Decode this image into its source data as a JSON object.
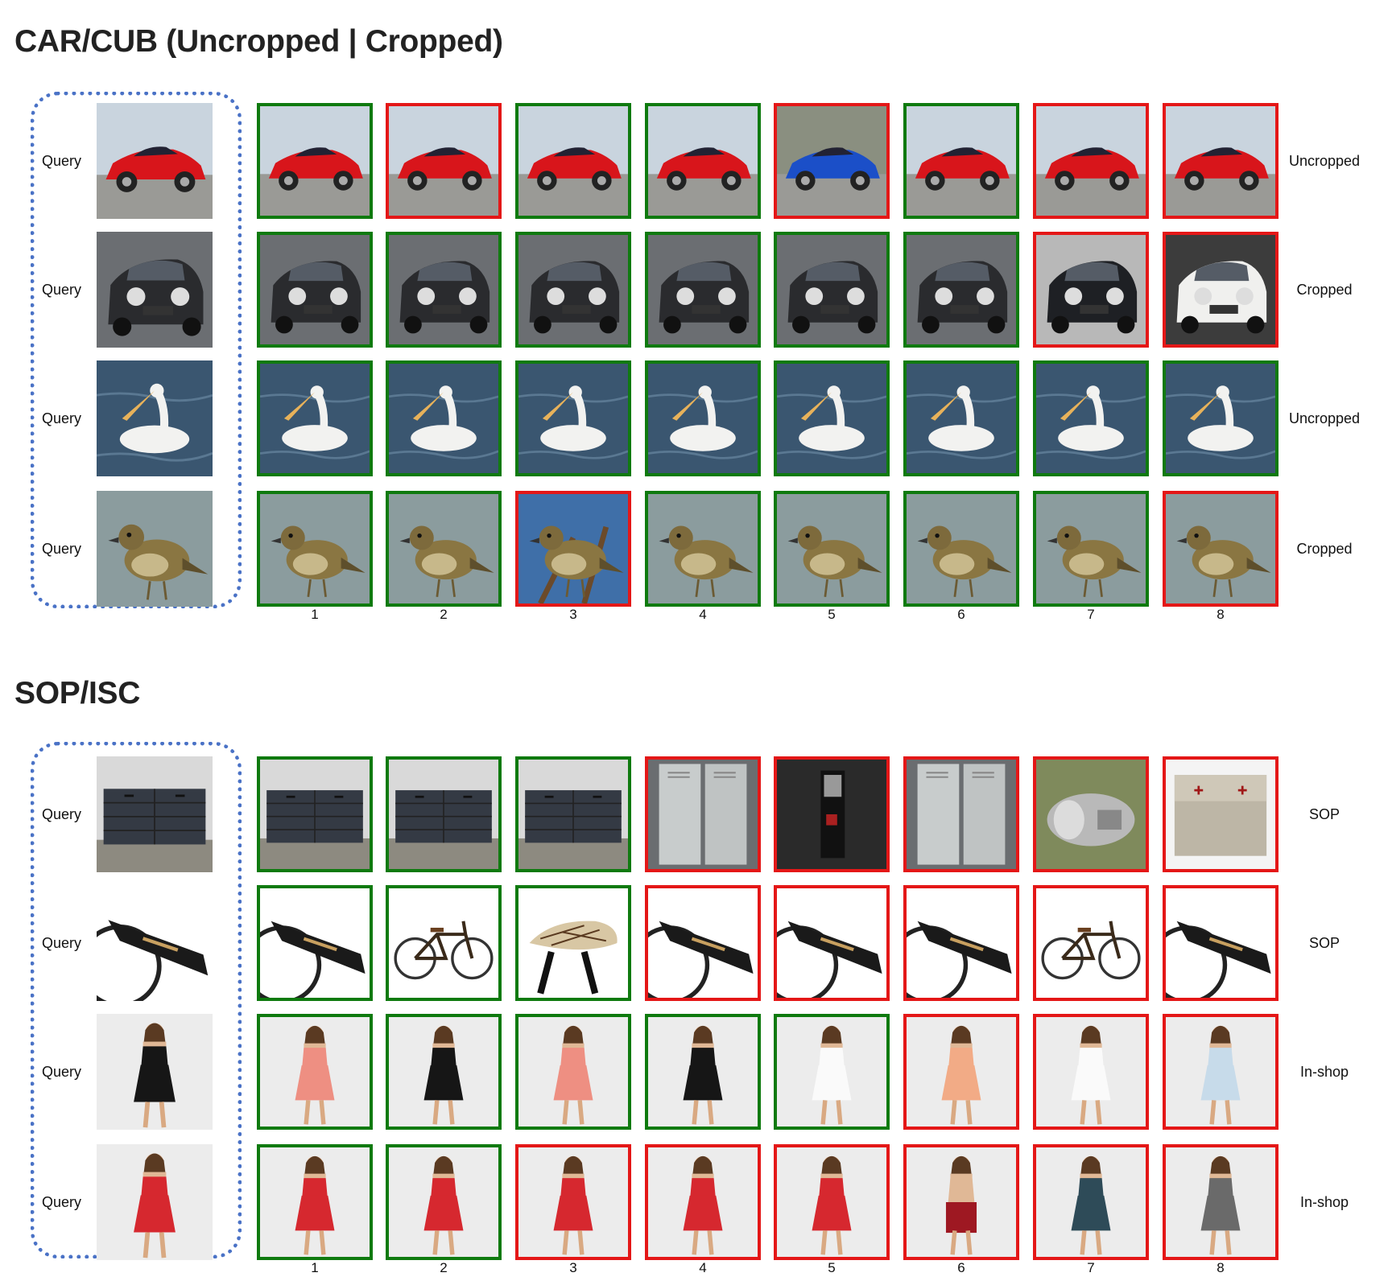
{
  "colors": {
    "correct": "#0f7a0f",
    "wrong": "#e41717",
    "query_frame": "#4a72c6"
  },
  "sections": [
    {
      "title": "CAR/CUB (Uncropped | Cropped)",
      "ranks": [
        "1",
        "2",
        "3",
        "4",
        "5",
        "6",
        "7",
        "8"
      ],
      "rows": [
        {
          "query_label": "Query",
          "query_icon": "red-sports-car",
          "dataset_label": "Uncropped",
          "results": [
            {
              "icon": "red-sports-car",
              "status": "correct"
            },
            {
              "icon": "red-sports-car",
              "status": "wrong"
            },
            {
              "icon": "red-sports-car",
              "status": "correct"
            },
            {
              "icon": "red-sports-car",
              "status": "correct"
            },
            {
              "icon": "blue-sports-car",
              "status": "wrong"
            },
            {
              "icon": "red-sports-car",
              "status": "correct"
            },
            {
              "icon": "red-sports-car",
              "status": "wrong"
            },
            {
              "icon": "red-sports-car",
              "status": "wrong"
            }
          ]
        },
        {
          "query_label": "Query",
          "query_icon": "black-compact-car",
          "dataset_label": "Cropped",
          "results": [
            {
              "icon": "black-compact-car",
              "status": "correct"
            },
            {
              "icon": "black-compact-car",
              "status": "correct"
            },
            {
              "icon": "black-compact-car",
              "status": "correct"
            },
            {
              "icon": "black-compact-car",
              "status": "correct"
            },
            {
              "icon": "black-compact-car",
              "status": "correct"
            },
            {
              "icon": "black-compact-car",
              "status": "correct"
            },
            {
              "icon": "black-beetle-car",
              "status": "wrong"
            },
            {
              "icon": "white-hatchback-car",
              "status": "wrong"
            }
          ]
        },
        {
          "query_label": "Query",
          "query_icon": "pelican-on-water",
          "dataset_label": "Uncropped",
          "results": [
            {
              "icon": "pelican-on-water",
              "status": "correct"
            },
            {
              "icon": "pelican-on-water",
              "status": "correct"
            },
            {
              "icon": "pelican-on-water",
              "status": "correct"
            },
            {
              "icon": "pelican-on-water",
              "status": "correct"
            },
            {
              "icon": "pelican-on-water",
              "status": "correct"
            },
            {
              "icon": "pelican-on-water",
              "status": "correct"
            },
            {
              "icon": "pelican-on-water",
              "status": "correct"
            },
            {
              "icon": "pelican-on-water",
              "status": "correct"
            }
          ]
        },
        {
          "query_label": "Query",
          "query_icon": "sparrow",
          "dataset_label": "Cropped",
          "results": [
            {
              "icon": "sparrow",
              "status": "correct"
            },
            {
              "icon": "sparrow",
              "status": "correct"
            },
            {
              "icon": "sparrow-on-branch",
              "status": "wrong"
            },
            {
              "icon": "sparrow",
              "status": "correct"
            },
            {
              "icon": "sparrow",
              "status": "correct"
            },
            {
              "icon": "sparrow",
              "status": "correct"
            },
            {
              "icon": "sparrow",
              "status": "correct"
            },
            {
              "icon": "sparrow",
              "status": "wrong"
            }
          ]
        }
      ]
    },
    {
      "title": "SOP/ISC",
      "ranks": [
        "1",
        "2",
        "3",
        "4",
        "5",
        "6",
        "7",
        "8"
      ],
      "rows": [
        {
          "query_label": "Query",
          "query_icon": "dresser",
          "dataset_label": "SOP",
          "results": [
            {
              "icon": "dresser",
              "status": "correct"
            },
            {
              "icon": "dresser",
              "status": "correct"
            },
            {
              "icon": "dresser",
              "status": "correct"
            },
            {
              "icon": "lockers",
              "status": "wrong"
            },
            {
              "icon": "dark-device",
              "status": "wrong"
            },
            {
              "icon": "lockers",
              "status": "wrong"
            },
            {
              "icon": "metal-part",
              "status": "wrong"
            },
            {
              "icon": "metal-box",
              "status": "wrong"
            }
          ]
        },
        {
          "query_label": "Query",
          "query_icon": "bicycle-closeup",
          "dataset_label": "SOP",
          "results": [
            {
              "icon": "bicycle-closeup",
              "status": "correct"
            },
            {
              "icon": "cruiser-bicycle",
              "status": "correct"
            },
            {
              "icon": "bicycle-seat",
              "status": "correct"
            },
            {
              "icon": "bicycle-closeup",
              "status": "wrong"
            },
            {
              "icon": "bicycle-closeup",
              "status": "wrong"
            },
            {
              "icon": "bicycle-closeup",
              "status": "wrong"
            },
            {
              "icon": "cruiser-bicycle",
              "status": "wrong"
            },
            {
              "icon": "bicycle-closeup",
              "status": "wrong"
            }
          ]
        },
        {
          "query_label": "Query",
          "query_icon": "model-black-top",
          "dataset_label": "In-shop",
          "results": [
            {
              "icon": "model-pink-top",
              "status": "correct"
            },
            {
              "icon": "model-black-top",
              "status": "correct"
            },
            {
              "icon": "model-pink-top",
              "status": "correct"
            },
            {
              "icon": "model-black-top",
              "status": "correct"
            },
            {
              "icon": "model-white-top",
              "status": "correct"
            },
            {
              "icon": "model-peach-top",
              "status": "wrong"
            },
            {
              "icon": "model-white-top",
              "status": "wrong"
            },
            {
              "icon": "model-lightblue-top",
              "status": "wrong"
            }
          ]
        },
        {
          "query_label": "Query",
          "query_icon": "model-red-dress",
          "dataset_label": "In-shop",
          "results": [
            {
              "icon": "model-red-dress",
              "status": "correct"
            },
            {
              "icon": "model-red-dress",
              "status": "correct"
            },
            {
              "icon": "model-red-dress",
              "status": "wrong"
            },
            {
              "icon": "model-red-dress",
              "status": "wrong"
            },
            {
              "icon": "model-red-dress",
              "status": "wrong"
            },
            {
              "icon": "model-red-skirt",
              "status": "wrong"
            },
            {
              "icon": "model-teal-dress",
              "status": "wrong"
            },
            {
              "icon": "model-print-dress",
              "status": "wrong"
            }
          ]
        }
      ]
    }
  ]
}
